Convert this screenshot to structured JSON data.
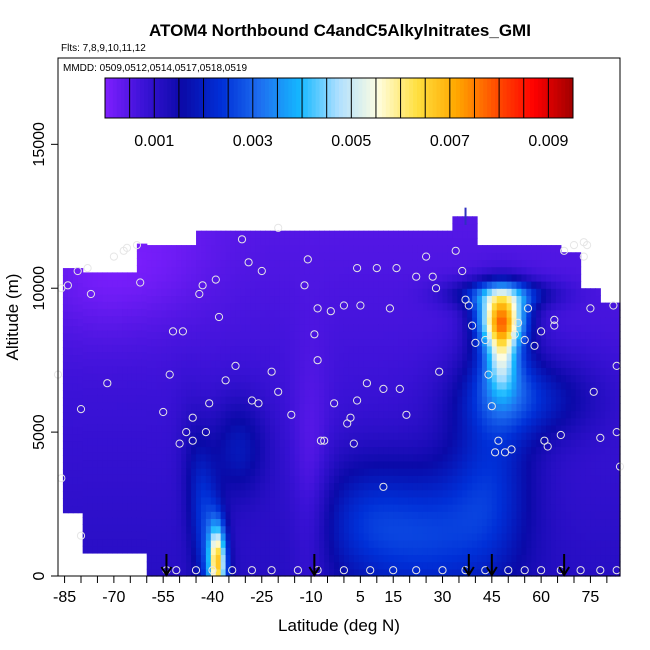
{
  "chart_data": {
    "type": "heatmap",
    "title": "ATOM4 Northbound C4andC5Alkylnitrates_GMI",
    "flights_label": "Flts: 7,8,9,10,11,12",
    "mmdd_label": "MMDD: 0509,0512,0514,0517,0518,0519",
    "xlabel": "Latitude (deg N)",
    "ylabel": "Altitude (m)",
    "xlim": [
      -87,
      84
    ],
    "ylim": [
      0,
      18000
    ],
    "x_tick_labels": [
      "-85",
      "-70",
      "-55",
      "-40",
      "-25",
      "-10",
      "5",
      "15",
      "30",
      "45",
      "60",
      "75"
    ],
    "x_ticks": [
      -85,
      -70,
      -55,
      -40,
      -25,
      -10,
      5,
      15,
      30,
      45,
      60,
      75
    ],
    "y_tick_labels": [
      "0",
      "5000",
      "10000",
      "15000"
    ],
    "y_ticks": [
      0,
      5000,
      10000,
      15000
    ],
    "colorbar": {
      "range": [
        0,
        0.0095
      ],
      "tick_values": [
        0.001,
        0.003,
        0.005,
        0.007,
        0.009
      ],
      "tick_labels": [
        "0.001",
        "0.003",
        "0.005",
        "0.007",
        "0.009"
      ],
      "colors": [
        "#7f1fff",
        "#3a12d6",
        "#0a0aa8",
        "#0030d8",
        "#1e70f0",
        "#14b8ff",
        "#b0e0ff",
        "#fffde0",
        "#ffe040",
        "#ffa800",
        "#ff5000",
        "#ff0000",
        "#a00000"
      ]
    },
    "arrows_latitude": [
      -54,
      -9,
      38,
      45,
      67
    ],
    "observations": [
      [
        -86,
        10000
      ],
      [
        -84,
        10100
      ],
      [
        -81,
        10600
      ],
      [
        -78,
        10700
      ],
      [
        -77,
        9800
      ],
      [
        -72,
        6700
      ],
      [
        -80,
        5800
      ],
      [
        -87,
        7000
      ],
      [
        -86,
        3400
      ],
      [
        -80,
        1400
      ],
      [
        -70,
        11100
      ],
      [
        -67,
        11300
      ],
      [
        -66,
        11400
      ],
      [
        -63,
        11500
      ],
      [
        -62,
        10200
      ],
      [
        -55,
        5700
      ],
      [
        -52,
        8500
      ],
      [
        -49,
        8500
      ],
      [
        -53,
        7000
      ],
      [
        -50,
        4600
      ],
      [
        -48,
        5000
      ],
      [
        -46,
        4700
      ],
      [
        -46,
        5500
      ],
      [
        -42,
        5000
      ],
      [
        -41,
        6000
      ],
      [
        -44,
        9800
      ],
      [
        -43,
        10100
      ],
      [
        -39,
        10300
      ],
      [
        -38,
        9000
      ],
      [
        -36,
        6800
      ],
      [
        -33,
        7300
      ],
      [
        -31,
        11700
      ],
      [
        -29,
        10900
      ],
      [
        -25,
        10600
      ],
      [
        -28,
        6100
      ],
      [
        -26,
        6000
      ],
      [
        -22,
        7100
      ],
      [
        -20,
        12100
      ],
      [
        -20,
        6400
      ],
      [
        -16,
        5600
      ],
      [
        -12,
        10100
      ],
      [
        -11,
        11000
      ],
      [
        -9,
        8400
      ],
      [
        -8,
        9300
      ],
      [
        -8,
        7500
      ],
      [
        -7,
        4700
      ],
      [
        -6,
        4700
      ],
      [
        -4,
        9200
      ],
      [
        -3,
        6000
      ],
      [
        0,
        9400
      ],
      [
        1,
        5300
      ],
      [
        2,
        5500
      ],
      [
        3,
        4600
      ],
      [
        4,
        6100
      ],
      [
        4,
        10700
      ],
      [
        5,
        9400
      ],
      [
        7,
        6700
      ],
      [
        10,
        10700
      ],
      [
        12,
        6500
      ],
      [
        12,
        3100
      ],
      [
        14,
        9300
      ],
      [
        16,
        10700
      ],
      [
        17,
        6500
      ],
      [
        19,
        5600
      ],
      [
        22,
        10400
      ],
      [
        25,
        11100
      ],
      [
        27,
        10400
      ],
      [
        28,
        10000
      ],
      [
        29,
        7100
      ],
      [
        34,
        11300
      ],
      [
        36,
        10600
      ],
      [
        37,
        9600
      ],
      [
        38,
        9400
      ],
      [
        39,
        8700
      ],
      [
        40,
        8100
      ],
      [
        43,
        8200
      ],
      [
        44,
        7000
      ],
      [
        45,
        5900
      ],
      [
        47,
        4700
      ],
      [
        46,
        4300
      ],
      [
        49,
        4300
      ],
      [
        51,
        4400
      ],
      [
        52,
        8400
      ],
      [
        53,
        8800
      ],
      [
        55,
        8200
      ],
      [
        56,
        9300
      ],
      [
        58,
        8000
      ],
      [
        60,
        8500
      ],
      [
        61,
        4700
      ],
      [
        62,
        4500
      ],
      [
        64,
        8900
      ],
      [
        64,
        8700
      ],
      [
        66,
        4900
      ],
      [
        67,
        11300
      ],
      [
        70,
        11500
      ],
      [
        73,
        11600
      ],
      [
        74,
        11500
      ],
      [
        73,
        11100
      ],
      [
        75,
        9300
      ],
      [
        76,
        6400
      ],
      [
        78,
        4800
      ],
      [
        82,
        9400
      ],
      [
        83,
        7300
      ],
      [
        83,
        5000
      ],
      [
        84,
        3800
      ],
      [
        -54,
        200
      ],
      [
        -51,
        200
      ],
      [
        -45,
        200
      ],
      [
        -40,
        200
      ],
      [
        -34,
        200
      ],
      [
        -28,
        200
      ],
      [
        -22,
        200
      ],
      [
        -14,
        200
      ],
      [
        -8,
        200
      ],
      [
        0,
        200
      ],
      [
        8,
        200
      ],
      [
        15,
        200
      ],
      [
        22,
        200
      ],
      [
        30,
        200
      ],
      [
        37,
        200
      ],
      [
        43,
        200
      ],
      [
        50,
        200
      ],
      [
        55,
        200
      ],
      [
        60,
        200
      ],
      [
        66,
        200
      ],
      [
        72,
        200
      ],
      [
        78,
        200
      ],
      [
        83,
        200
      ]
    ]
  }
}
